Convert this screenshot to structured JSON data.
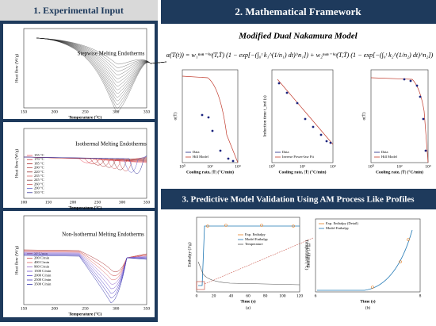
{
  "header1": "1. Experimental Input",
  "header2": "2. Mathematical Framework",
  "header3": "3. Predictive Model Validation Using AM Process Like Profiles",
  "model_title": "Modified Dual Nakamura Model",
  "equation": "α(T(t)) = w₁ⁿᵒⁿ⁻ⁱˢᵒ(T,Ṫ) (1 − exp[−(∫₀ᵗ k₁^(1/n₁) dt)^n₁]) + w₂ⁿᵒⁿ⁻ⁱˢᵒ(T,Ṫ) (1 − exp[−(∫₀ᵗ k₂^(1/n₂) dt)^n₂])",
  "exp_plots": [
    {
      "label": "Stepwise Melting Endotherms",
      "ylabel": "Heat flow (W/g)",
      "xlabel": "Temperature (°C)",
      "xticks": [
        "150",
        "200",
        "250",
        "300",
        "350"
      ],
      "legend": []
    },
    {
      "label": "Isothermal Melting Endotherms",
      "ylabel": "Heat flow (W/g)",
      "xlabel": "Temperature (°C)",
      "xticks": [
        "100",
        "150",
        "200",
        "250",
        "300",
        "350"
      ],
      "legend": [
        "155 °C",
        "170 °C",
        "185 °C",
        "200 °C",
        "220 °C",
        "235 °C",
        "245 °C",
        "260 °C",
        "290 °C",
        "310 °C"
      ]
    },
    {
      "label": "Non-Isothermal Melting Endotherms",
      "ylabel": "Heat flow (W/g)",
      "xlabel": "Temperature (°C)",
      "xticks": [
        "150",
        "200",
        "250",
        "300",
        "350"
      ],
      "legend": [
        "50 C/min",
        "200 C/min",
        "400 C/min",
        "960 C/min",
        "1500 C/min",
        "2000 C/min",
        "2500 C/min",
        "3500 C/min"
      ]
    }
  ],
  "framework_plots": [
    {
      "ylabel": "α(Ṫ)",
      "xlabel": "Cooling rate, |Ṫ| (°C/min)",
      "xticks": [
        "10⁰",
        "10²",
        "10⁴"
      ],
      "legend": [
        "Data",
        "Hill Model"
      ]
    },
    {
      "ylabel": "Induction time t_ind (s)",
      "xlabel": "Cooling rate, |Ṫ| (°C/min)",
      "xticks": [
        "10⁰",
        "10²",
        "10⁴"
      ],
      "legend": [
        "Data",
        "Inverse Power-law Fit"
      ]
    },
    {
      "ylabel": "α(Ṫ)",
      "xlabel": "Cooling rate, |Ṫ| (°C/min)",
      "xticks": [
        "10⁰",
        "10²",
        "10⁴"
      ],
      "legend": [
        "Data",
        "Hill Model"
      ]
    }
  ],
  "validation_plots": [
    {
      "ylabel": "Enthalpy (J/g)",
      "y2label": "Temperature (°C)",
      "xlabel": "Time (s)",
      "caption": "(a)",
      "xticks": [
        "0",
        "20",
        "40",
        "60",
        "80",
        "100",
        "120"
      ],
      "legend": [
        "Exp. Enthalpy",
        "Model Enthalpy",
        "Temperature"
      ]
    },
    {
      "ylabel": "Enthalpy (J/g)",
      "xlabel": "Time (s)",
      "caption": "(b)",
      "xticks": [
        "6",
        "8"
      ],
      "legend": [
        "Exp. Enthalpy (Detail)",
        "Model Enthalpy"
      ]
    }
  ]
}
